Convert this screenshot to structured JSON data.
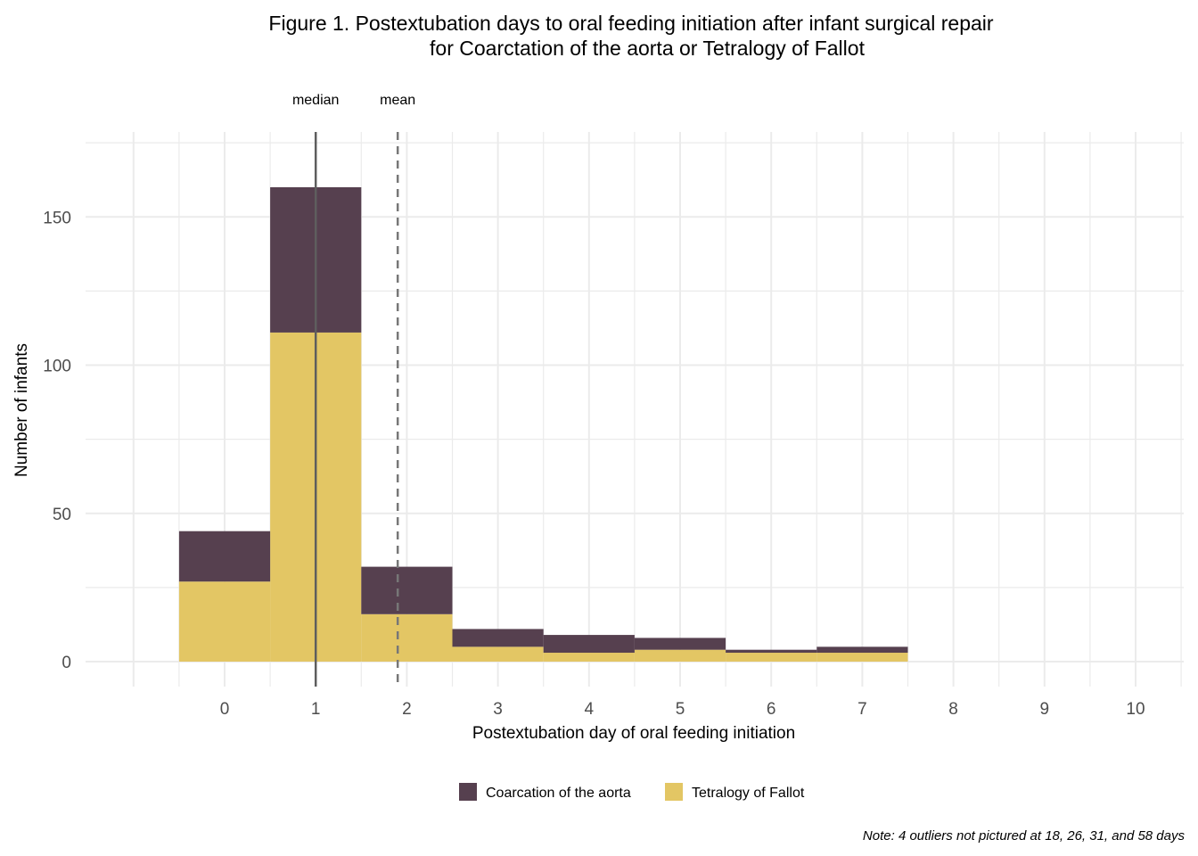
{
  "chart_data": {
    "type": "bar",
    "stacked": true,
    "title": "Figure 1. Postextubation days to oral feeding initiation after infant surgical repair",
    "subtitle": "for Coarctation of the aorta or Tetralogy of Fallot",
    "xlabel": "Postextubation day of oral feeding initiation",
    "ylabel": "Number of infants",
    "x": [
      0,
      1,
      2,
      3,
      4,
      5,
      6,
      7
    ],
    "xlim": [
      -1,
      10
    ],
    "ylim": [
      0,
      175
    ],
    "xticks": [
      "0",
      "1",
      "2",
      "3",
      "4",
      "5",
      "6",
      "7",
      "8",
      "9",
      "10"
    ],
    "yticks": [
      "0",
      "50",
      "100",
      "150"
    ],
    "grid": true,
    "legend_position": "bottom",
    "series": [
      {
        "name": "Tetralogy of Fallot",
        "color": "#e3c664",
        "values": [
          27,
          111,
          16,
          5,
          3,
          4,
          3,
          3
        ]
      },
      {
        "name": "Coarcation of the aorta",
        "color": "#56404f",
        "values": [
          17,
          49,
          16,
          6,
          6,
          4,
          1,
          2
        ]
      }
    ],
    "legend_order": [
      1,
      0
    ],
    "reference_lines": [
      {
        "label": "median",
        "x": 1,
        "style": "solid"
      },
      {
        "label": "mean",
        "x": 1.9,
        "style": "dashed"
      }
    ],
    "note": "Note: 4 outliers not pictured at 18, 26, 31, and 58 days"
  }
}
